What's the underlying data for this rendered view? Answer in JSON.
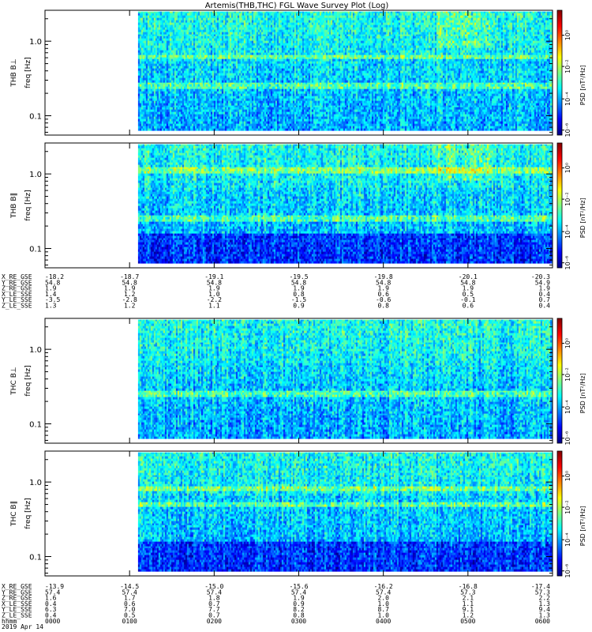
{
  "title": "Artemis(THB,THC) FGL Wave Survey Plot (Log)",
  "colors": {
    "jet": [
      "#000080",
      "#0000ff",
      "#0080ff",
      "#00ffff",
      "#80ff80",
      "#ffff00",
      "#ff8000",
      "#ff0000",
      "#800000"
    ],
    "missing": "#ffffff",
    "axis": "#000000"
  },
  "chart_data": [
    {
      "type": "heatmap",
      "probe": "THB",
      "ylabel_top": "THB B⊥",
      "ylabel": "freq [Hz]",
      "yscale": "log",
      "ylim": [
        0.055,
        2.6
      ],
      "yticks": [
        "1.0",
        "0.1"
      ],
      "colorbar_label": "PSD [nT²/Hz]",
      "colorbar_scale": "log",
      "colorbar_ticks": [
        "10⁰",
        "10⁻²",
        "10⁻⁴",
        "10⁻⁶"
      ],
      "data_start_hour": 1.1,
      "bands": [
        0.62,
        0.25
      ]
    },
    {
      "type": "heatmap",
      "probe": "THB",
      "ylabel_top": "THB B∥",
      "ylabel": "freq [Hz]",
      "yscale": "log",
      "ylim": [
        0.055,
        2.6
      ],
      "yticks": [
        "1.0",
        "0.1"
      ],
      "colorbar_label": "PSD [nT²/Hz]",
      "colorbar_scale": "log",
      "colorbar_ticks": [
        "10⁰",
        "10⁻²",
        "10⁻⁴",
        "10⁻⁶"
      ],
      "data_start_hour": 1.1,
      "bands": [
        1.1,
        0.25
      ]
    },
    {
      "type": "heatmap",
      "probe": "THC",
      "ylabel_top": "THC B⊥",
      "ylabel": "freq [Hz]",
      "yscale": "log",
      "ylim": [
        0.055,
        2.6
      ],
      "yticks": [
        "1.0",
        "0.1"
      ],
      "colorbar_label": "PSD [nT²/Hz]",
      "colorbar_scale": "log",
      "colorbar_ticks": [
        "10⁰",
        "10⁻²",
        "10⁻⁴",
        "10⁻⁶"
      ],
      "data_start_hour": 1.1,
      "bands": [
        0.25
      ]
    },
    {
      "type": "heatmap",
      "probe": "THC",
      "ylabel_top": "THC B∥",
      "ylabel": "freq [Hz]",
      "yscale": "log",
      "ylim": [
        0.055,
        2.6
      ],
      "yticks": [
        "1.0",
        "0.1"
      ],
      "colorbar_label": "PSD [nT²/Hz]",
      "colorbar_scale": "log",
      "colorbar_ticks": [
        "10⁰",
        "10⁻²",
        "10⁻⁴",
        "10⁻⁶"
      ],
      "data_start_hour": 1.1,
      "bands": [
        0.5,
        0.8
      ]
    }
  ],
  "thb_ephemeris": {
    "rows": [
      {
        "label": "X_RE_GSE",
        "values": [
          "-18.2",
          "-18.7",
          "-19.1",
          "-19.5",
          "-19.8",
          "-20.1",
          "-20.3"
        ]
      },
      {
        "label": "Y_RE_GSE",
        "values": [
          "54.8",
          "54.8",
          "54.8",
          "54.8",
          "54.8",
          "54.8",
          "54.9"
        ]
      },
      {
        "label": "Z_RE_GSE",
        "values": [
          "1.9",
          "1.9",
          "1.9",
          "1.9",
          "1.9",
          "1.9",
          "1.9"
        ]
      },
      {
        "label": "X_LE_SSE",
        "values": [
          "1.4",
          "1.2",
          "1.0",
          "0.8",
          "0.6",
          "0.5",
          "0.4"
        ]
      },
      {
        "label": "Y_LE_SSE",
        "values": [
          "-3.5",
          "-2.8",
          "-2.2",
          "-1.5",
          "-0.6",
          "-0.1",
          "0.7"
        ]
      },
      {
        "label": "Z_LE_SSE",
        "values": [
          "1.3",
          "1.2",
          "1.1",
          "0.9",
          "0.8",
          "0.6",
          "0.4"
        ]
      }
    ]
  },
  "thc_ephemeris": {
    "rows": [
      {
        "label": "X_RE_GSE",
        "values": [
          "-13.9",
          "-14.5",
          "-15.0",
          "-15.6",
          "-16.2",
          "-16.8",
          "-17.4"
        ]
      },
      {
        "label": "Y_RE_GSE",
        "values": [
          "57.4",
          "57.4",
          "57.4",
          "57.4",
          "57.4",
          "57.3",
          "57.3"
        ]
      },
      {
        "label": "Z_RE_GSE",
        "values": [
          "1.6",
          "1.7",
          "1.8",
          "1.9",
          "2.0",
          "2.1",
          "2.2"
        ]
      },
      {
        "label": "X_LE_SSE",
        "values": [
          "0.4",
          "0.6",
          "0.7",
          "0.9",
          "1.0",
          "1.1",
          "1.3"
        ]
      },
      {
        "label": "Y_LE_SSE",
        "values": [
          "6.3",
          "7.0",
          "7.7",
          "8.2",
          "8.7",
          "9.1",
          "9.4"
        ]
      },
      {
        "label": "Z_LE_SSE",
        "values": [
          "0.4",
          "0.5",
          "0.7",
          "0.8",
          "1.0",
          "1.2",
          "1.3"
        ]
      },
      {
        "label": "hhmm",
        "values": [
          "0000",
          "0100",
          "0200",
          "0300",
          "0400",
          "0500",
          "0600"
        ]
      }
    ],
    "date": "2019 Apr 14"
  }
}
